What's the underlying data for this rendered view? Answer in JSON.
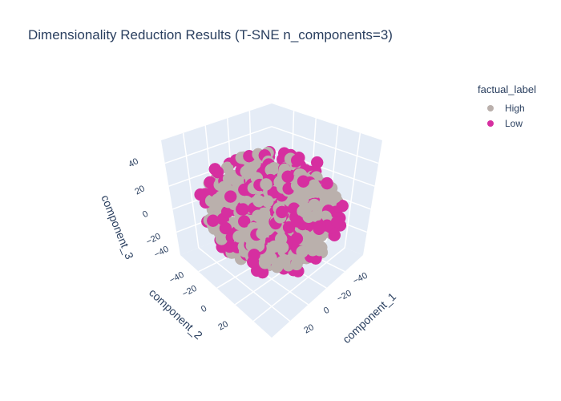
{
  "chart_data": {
    "type": "scatter",
    "title": "Dimensionality Reduction Results (T-SNE n_components=3)",
    "legend": {
      "title": "factual_label",
      "placement": "top-right",
      "entries": [
        {
          "name": "High",
          "color": "#bab0ac"
        },
        {
          "name": "Low",
          "color": "#d62fa0"
        }
      ]
    },
    "axes": {
      "x": {
        "label": "component_1",
        "ticks": [
          "−40",
          "−20",
          "0",
          "20"
        ]
      },
      "y": {
        "label": "component_2",
        "ticks": [
          "−40",
          "−20",
          "0",
          "20"
        ]
      },
      "z": {
        "label": "component_3",
        "ticks": [
          "40",
          "20",
          "0",
          "−20",
          "−40"
        ]
      }
    },
    "range": [
      -45,
      45
    ],
    "point_counts": {
      "High": 420,
      "Low": 260
    },
    "series": [
      {
        "name": "High",
        "color": "#bab0ac"
      },
      {
        "name": "Low",
        "color": "#d62fa0"
      }
    ]
  }
}
